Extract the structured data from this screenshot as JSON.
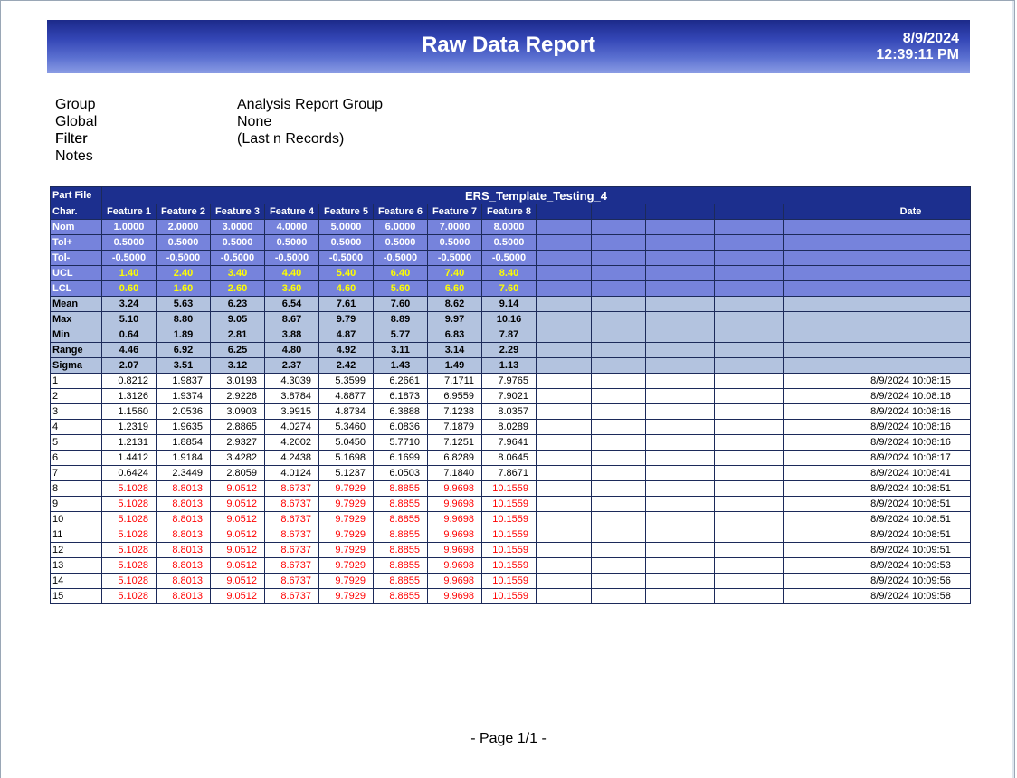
{
  "header": {
    "title": "Raw Data Report",
    "date": "8/9/2024",
    "time": "12:39:11 PM"
  },
  "info": [
    {
      "label": "Group",
      "value": "Analysis Report Group"
    },
    {
      "label": "Global Filter",
      "value": "None"
    },
    {
      "label": "Filter",
      "value": "(Last n Records)"
    },
    {
      "label": "Notes",
      "value": ""
    }
  ],
  "table": {
    "part_file_label": "Part File",
    "part_file_name": "ERS_Template_Testing_4",
    "char_label": "Char.",
    "date_label": "Date",
    "features": [
      "Feature 1",
      "Feature 2",
      "Feature 3",
      "Feature 4",
      "Feature 5",
      "Feature 6",
      "Feature 7",
      "Feature 8"
    ],
    "spec_rows": [
      {
        "label": "Nom",
        "type": "spec",
        "values": [
          "1.0000",
          "2.0000",
          "3.0000",
          "4.0000",
          "5.0000",
          "6.0000",
          "7.0000",
          "8.0000"
        ]
      },
      {
        "label": "Tol+",
        "type": "spec",
        "values": [
          "0.5000",
          "0.5000",
          "0.5000",
          "0.5000",
          "0.5000",
          "0.5000",
          "0.5000",
          "0.5000"
        ]
      },
      {
        "label": "Tol-",
        "type": "spec",
        "values": [
          "-0.5000",
          "-0.5000",
          "-0.5000",
          "-0.5000",
          "-0.5000",
          "-0.5000",
          "-0.5000",
          "-0.5000"
        ]
      },
      {
        "label": "UCL",
        "type": "lim",
        "values": [
          "1.40",
          "2.40",
          "3.40",
          "4.40",
          "5.40",
          "6.40",
          "7.40",
          "8.40"
        ]
      },
      {
        "label": "LCL",
        "type": "lim",
        "values": [
          "0.60",
          "1.60",
          "2.60",
          "3.60",
          "4.60",
          "5.60",
          "6.60",
          "7.60"
        ]
      },
      {
        "label": "Mean",
        "type": "stat",
        "values": [
          "3.24",
          "5.63",
          "6.23",
          "6.54",
          "7.61",
          "7.60",
          "8.62",
          "9.14"
        ]
      },
      {
        "label": "Max",
        "type": "stat",
        "values": [
          "5.10",
          "8.80",
          "9.05",
          "8.67",
          "9.79",
          "8.89",
          "9.97",
          "10.16"
        ]
      },
      {
        "label": "Min",
        "type": "stat",
        "values": [
          "0.64",
          "1.89",
          "2.81",
          "3.88",
          "4.87",
          "5.77",
          "6.83",
          "7.87"
        ]
      },
      {
        "label": "Range",
        "type": "stat",
        "values": [
          "4.46",
          "6.92",
          "6.25",
          "4.80",
          "4.92",
          "3.11",
          "3.14",
          "2.29"
        ]
      },
      {
        "label": "Sigma",
        "type": "stat",
        "values": [
          "2.07",
          "3.51",
          "3.12",
          "2.37",
          "2.42",
          "1.43",
          "1.49",
          "1.13"
        ]
      }
    ],
    "data_rows": [
      {
        "n": "1",
        "red": false,
        "values": [
          "0.8212",
          "1.9837",
          "3.0193",
          "4.3039",
          "5.3599",
          "6.2661",
          "7.1711",
          "7.9765"
        ],
        "date": "8/9/2024  10:08:15"
      },
      {
        "n": "2",
        "red": false,
        "values": [
          "1.3126",
          "1.9374",
          "2.9226",
          "3.8784",
          "4.8877",
          "6.1873",
          "6.9559",
          "7.9021"
        ],
        "date": "8/9/2024  10:08:16"
      },
      {
        "n": "3",
        "red": false,
        "values": [
          "1.1560",
          "2.0536",
          "3.0903",
          "3.9915",
          "4.8734",
          "6.3888",
          "7.1238",
          "8.0357"
        ],
        "date": "8/9/2024  10:08:16"
      },
      {
        "n": "4",
        "red": false,
        "values": [
          "1.2319",
          "1.9635",
          "2.8865",
          "4.0274",
          "5.3460",
          "6.0836",
          "7.1879",
          "8.0289"
        ],
        "date": "8/9/2024  10:08:16"
      },
      {
        "n": "5",
        "red": false,
        "values": [
          "1.2131",
          "1.8854",
          "2.9327",
          "4.2002",
          "5.0450",
          "5.7710",
          "7.1251",
          "7.9641"
        ],
        "date": "8/9/2024  10:08:16"
      },
      {
        "n": "6",
        "red": false,
        "values": [
          "1.4412",
          "1.9184",
          "3.4282",
          "4.2438",
          "5.1698",
          "6.1699",
          "6.8289",
          "8.0645"
        ],
        "date": "8/9/2024  10:08:17"
      },
      {
        "n": "7",
        "red": false,
        "values": [
          "0.6424",
          "2.3449",
          "2.8059",
          "4.0124",
          "5.1237",
          "6.0503",
          "7.1840",
          "7.8671"
        ],
        "date": "8/9/2024  10:08:41"
      },
      {
        "n": "8",
        "red": true,
        "values": [
          "5.1028",
          "8.8013",
          "9.0512",
          "8.6737",
          "9.7929",
          "8.8855",
          "9.9698",
          "10.1559"
        ],
        "date": "8/9/2024  10:08:51"
      },
      {
        "n": "9",
        "red": true,
        "values": [
          "5.1028",
          "8.8013",
          "9.0512",
          "8.6737",
          "9.7929",
          "8.8855",
          "9.9698",
          "10.1559"
        ],
        "date": "8/9/2024  10:08:51"
      },
      {
        "n": "10",
        "red": true,
        "values": [
          "5.1028",
          "8.8013",
          "9.0512",
          "8.6737",
          "9.7929",
          "8.8855",
          "9.9698",
          "10.1559"
        ],
        "date": "8/9/2024  10:08:51"
      },
      {
        "n": "11",
        "red": true,
        "values": [
          "5.1028",
          "8.8013",
          "9.0512",
          "8.6737",
          "9.7929",
          "8.8855",
          "9.9698",
          "10.1559"
        ],
        "date": "8/9/2024  10:08:51"
      },
      {
        "n": "12",
        "red": true,
        "values": [
          "5.1028",
          "8.8013",
          "9.0512",
          "8.6737",
          "9.7929",
          "8.8855",
          "9.9698",
          "10.1559"
        ],
        "date": "8/9/2024  10:09:51"
      },
      {
        "n": "13",
        "red": true,
        "values": [
          "5.1028",
          "8.8013",
          "9.0512",
          "8.6737",
          "9.7929",
          "8.8855",
          "9.9698",
          "10.1559"
        ],
        "date": "8/9/2024  10:09:53"
      },
      {
        "n": "14",
        "red": true,
        "values": [
          "5.1028",
          "8.8013",
          "9.0512",
          "8.6737",
          "9.7929",
          "8.8855",
          "9.9698",
          "10.1559"
        ],
        "date": "8/9/2024  10:09:56"
      },
      {
        "n": "15",
        "red": true,
        "values": [
          "5.1028",
          "8.8013",
          "9.0512",
          "8.6737",
          "9.7929",
          "8.8855",
          "9.9698",
          "10.1559"
        ],
        "date": "8/9/2024  10:09:58"
      }
    ]
  },
  "footer": {
    "page": "- Page 1/1 -"
  }
}
